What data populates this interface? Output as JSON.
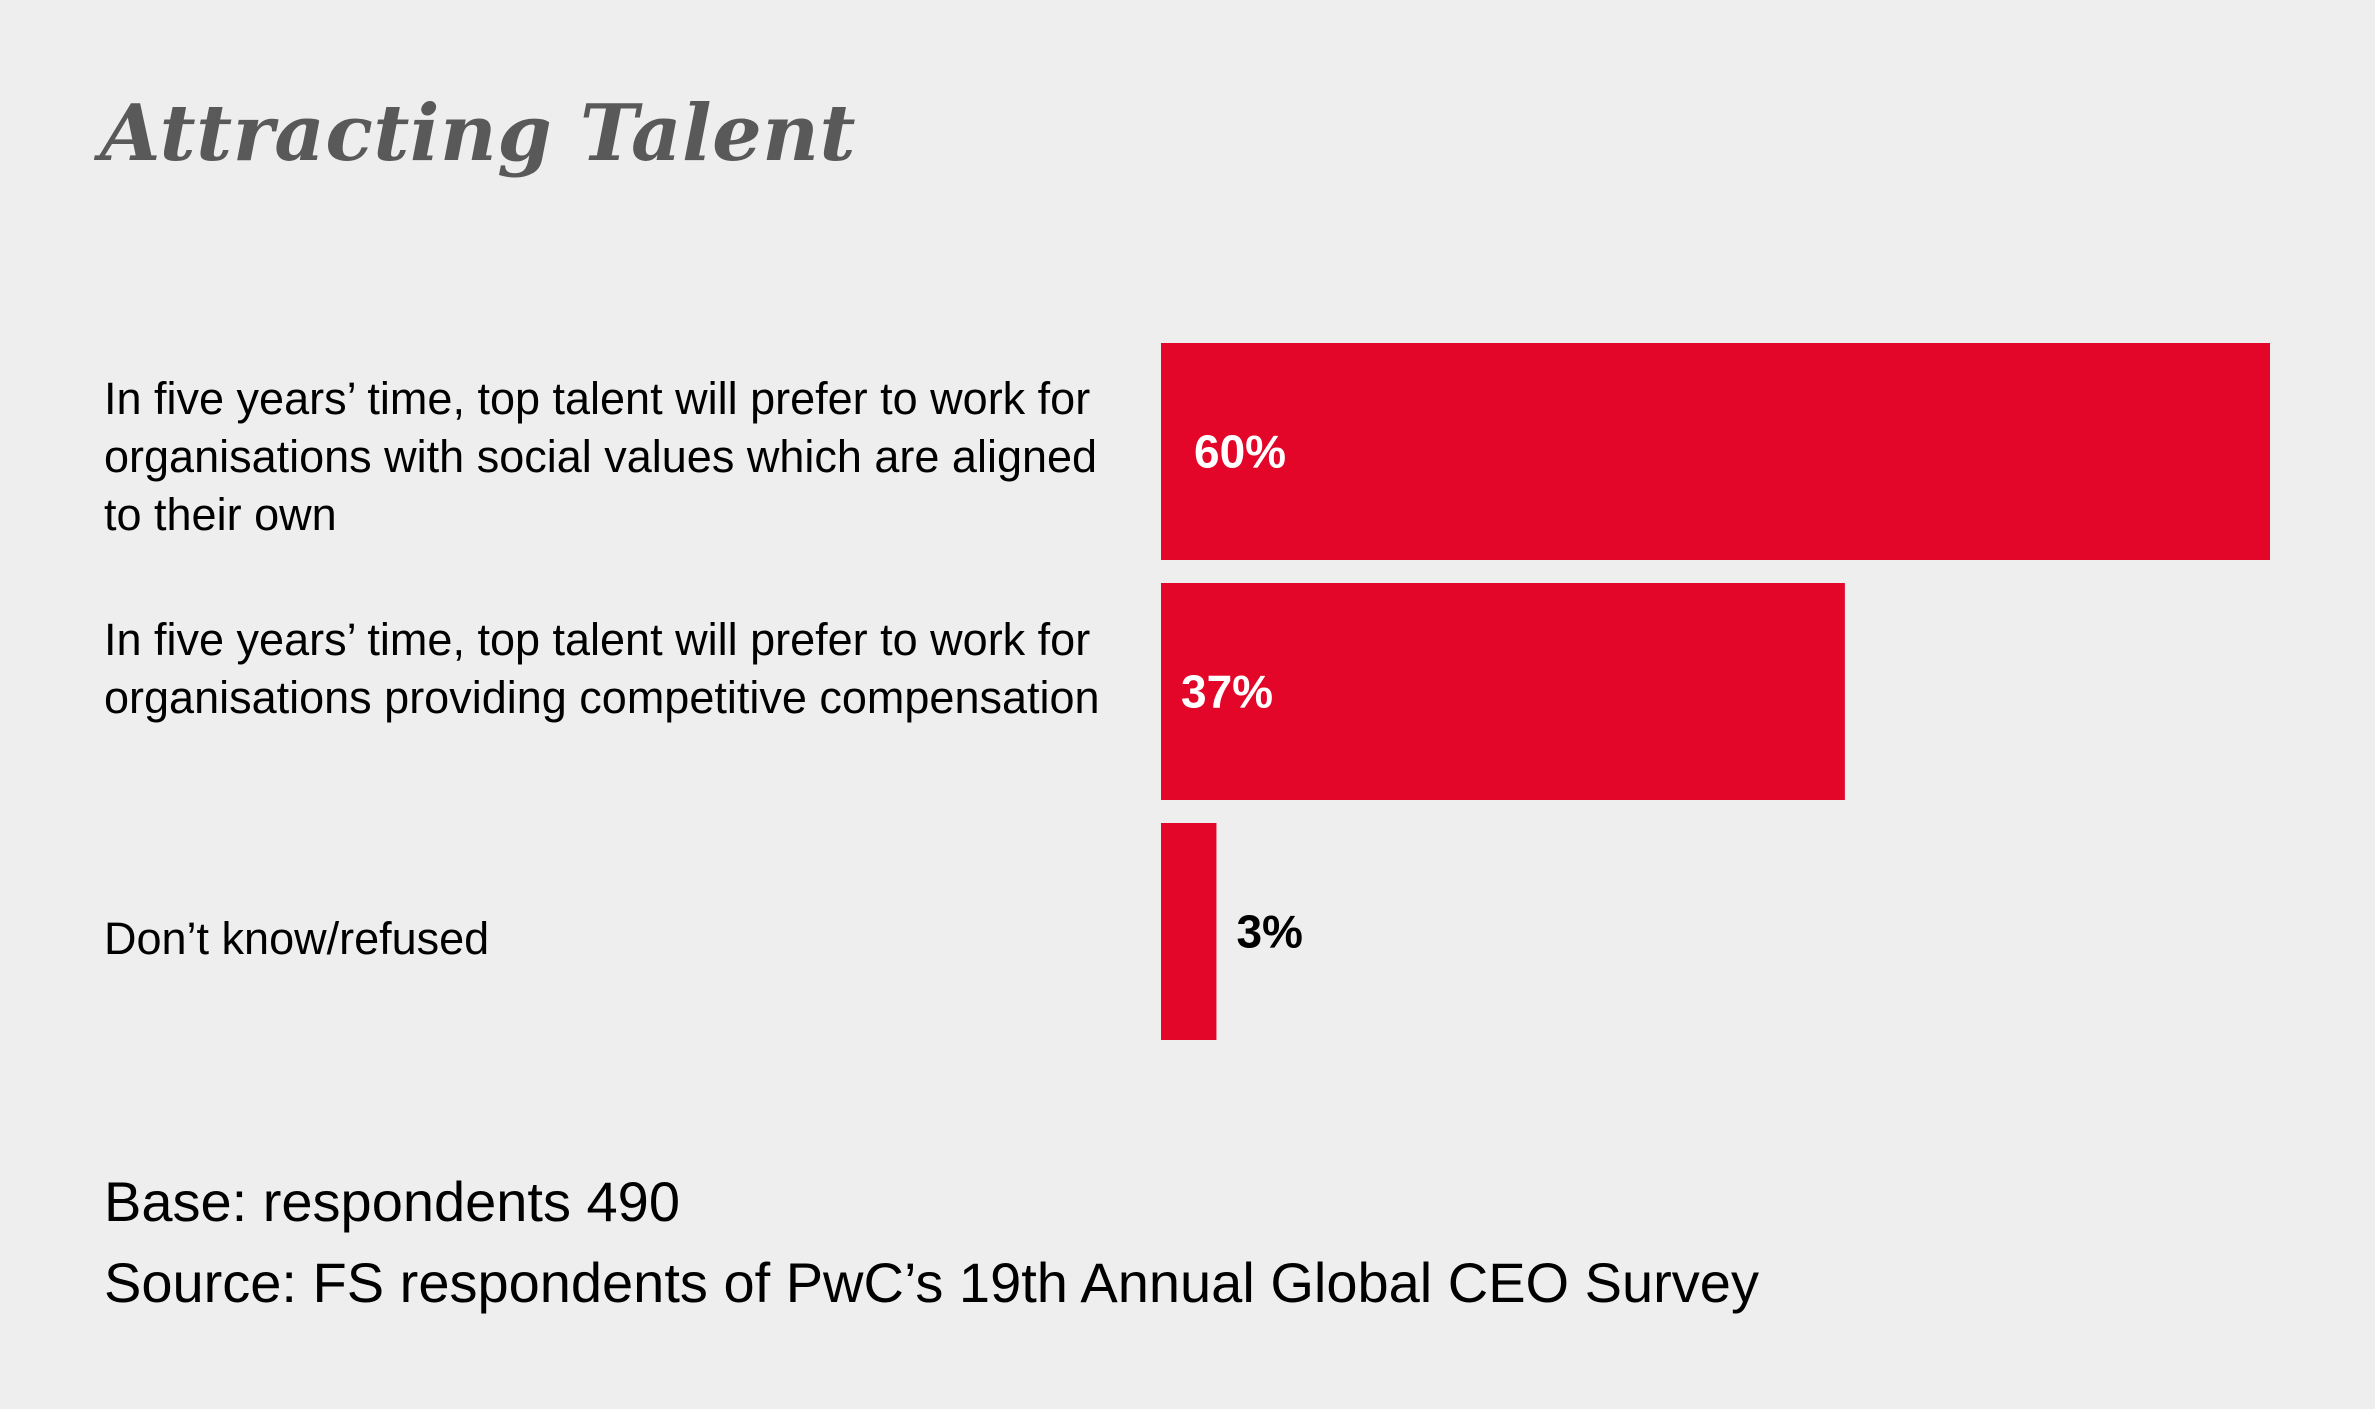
{
  "colors": {
    "background": "#eeeeee",
    "bar": "#e30629",
    "title": "#595959",
    "label_inside": "#ffffff",
    "label_outside": "#000000"
  },
  "chart_data": {
    "type": "bar",
    "orientation": "horizontal",
    "title": "Attracting Talent",
    "categories": [
      "In five years’ time, top talent will prefer to work for organisations with social values which are aligned to their own",
      "In five years’ time, top talent will prefer to work for organisations providing competitive compensation",
      "Don’t know/refused"
    ],
    "values": [
      60,
      37,
      3
    ],
    "value_labels": [
      "60%",
      "37%",
      "3%"
    ],
    "unit": "%",
    "xlim": [
      0,
      60
    ],
    "grid": false,
    "legend": "none"
  },
  "footer": {
    "base": "Base: respondents 490",
    "source": "Source: FS respondents of PwC’s 19th Annual Global CEO Survey"
  }
}
